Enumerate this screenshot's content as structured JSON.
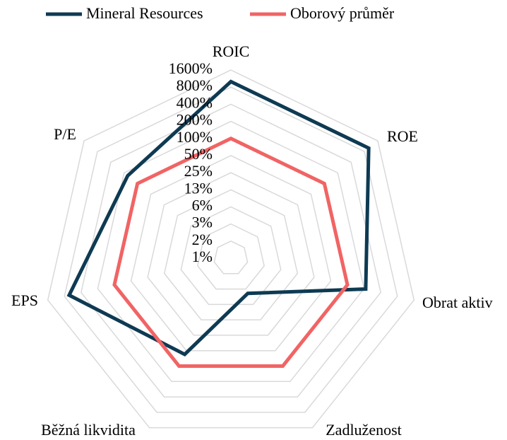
{
  "chart_data": {
    "type": "radar",
    "log_scale": true,
    "legend_position": "top",
    "categories": [
      "ROIC",
      "ROE",
      "Obrat aktiv",
      "Zadluženost",
      "Běžná likvidita",
      "EPS",
      "P/E"
    ],
    "series": [
      {
        "name": "Mineral Resources",
        "color": "#0e3a53",
        "values": [
          1000,
          1000,
          214,
          3.8,
          59,
          657,
          166
        ]
      },
      {
        "name": "Oborový průměr",
        "color": "#f16464",
        "values": [
          100,
          100,
          100,
          100,
          100,
          100,
          100
        ]
      }
    ],
    "ylim": [
      0.78125,
      1600
    ],
    "yticks": [
      {
        "value": 0.78125,
        "label": "1%"
      },
      {
        "value": 1.5625,
        "label": "2%"
      },
      {
        "value": 3.125,
        "label": "3%"
      },
      {
        "value": 6.25,
        "label": "6%"
      },
      {
        "value": 12.5,
        "label": "13%"
      },
      {
        "value": 25,
        "label": "25%"
      },
      {
        "value": 50,
        "label": "50%"
      },
      {
        "value": 100,
        "label": "100%"
      },
      {
        "value": 200,
        "label": "200%"
      },
      {
        "value": 400,
        "label": "400%"
      },
      {
        "value": 800,
        "label": "800%"
      },
      {
        "value": 1600,
        "label": "1600%"
      }
    ],
    "grid": true
  }
}
